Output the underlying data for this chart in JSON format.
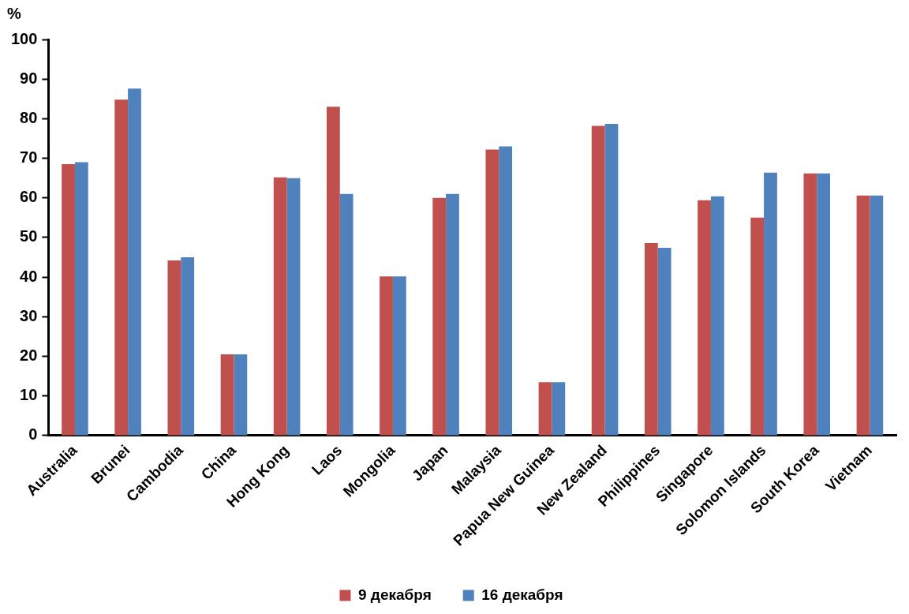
{
  "chart_data": {
    "type": "bar",
    "ylabel": "%",
    "categories": [
      "Australia",
      "Brunei",
      "Cambodia",
      "China",
      "Hong Kong",
      "Laos",
      "Mongolia",
      "Japan",
      "Malaysia",
      "Papua New Guinea",
      "New Zealand",
      "Philippines",
      "Singapore",
      "Solomon Islands",
      "South Korea",
      "Vietnam"
    ],
    "series": [
      {
        "name": "9 декабря",
        "color": "#c0504d",
        "values": [
          68.5,
          84.8,
          44.2,
          20.5,
          65.2,
          83,
          40.2,
          60,
          72.2,
          13.5,
          78.2,
          48.6,
          59.4,
          55,
          66.2,
          60.6
        ]
      },
      {
        "name": "16 декабря",
        "color": "#4f81bd",
        "values": [
          69,
          87.6,
          45,
          20.5,
          65,
          61,
          40.2,
          61,
          73,
          13.5,
          78.7,
          47.4,
          60.4,
          66.4,
          66.2,
          60.6
        ]
      }
    ],
    "ylim": [
      0,
      100
    ],
    "yticks": [
      0,
      10,
      20,
      30,
      40,
      50,
      60,
      70,
      80,
      90,
      100
    ],
    "grid": false,
    "legend": "bottom"
  }
}
